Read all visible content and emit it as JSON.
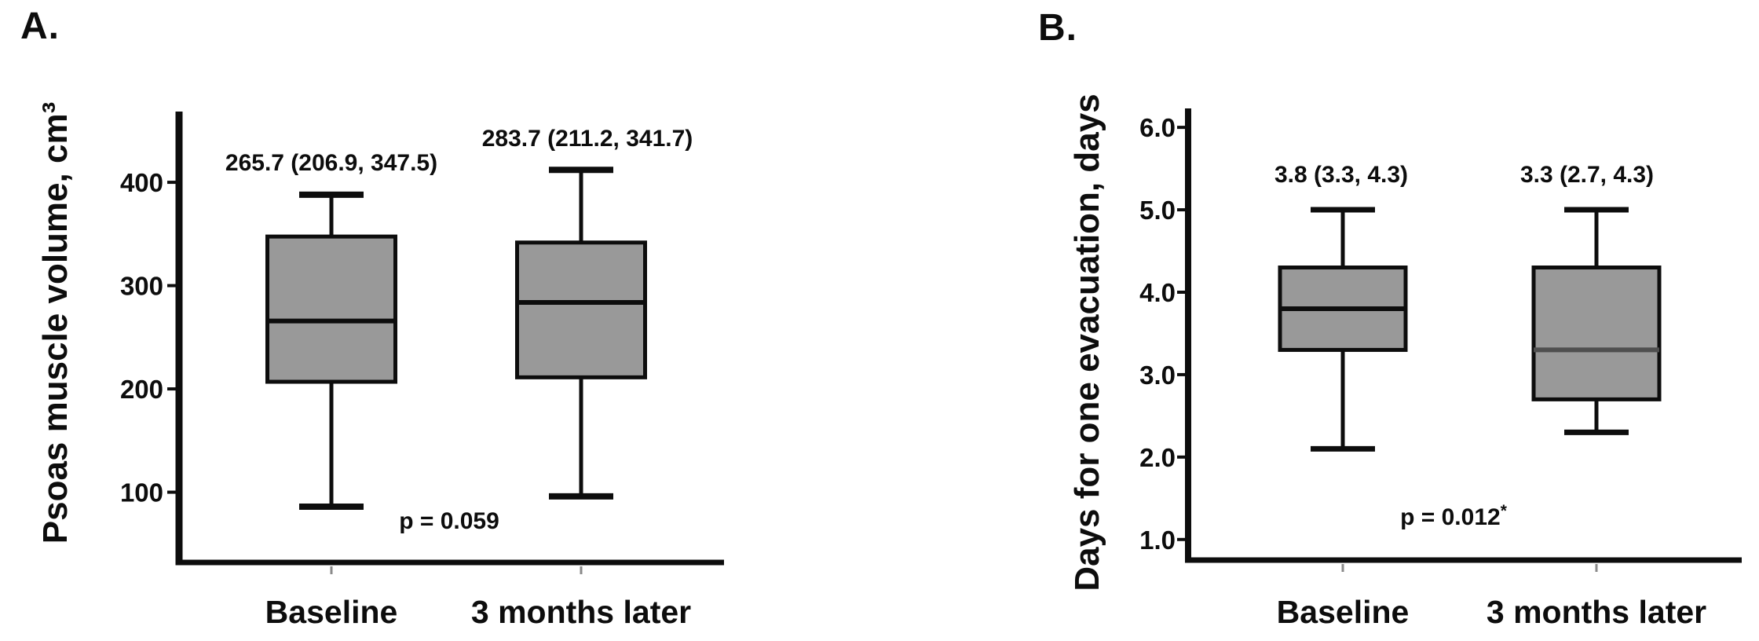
{
  "figure": {
    "background_color": "#ffffff",
    "text_color": "#0d0d0d",
    "box_fill_color": "#999999",
    "box_stroke_color": "#0d0d0d",
    "muted_tick_color": "#8a8a8a",
    "secondary_median_color": "#4f4f4f"
  },
  "chart_data": [
    {
      "type": "box",
      "panel_label": "A.",
      "ylabel": "Psoas muscle volume, cm³",
      "categories": [
        "Baseline",
        "3 months later"
      ],
      "yticks": [
        100,
        200,
        300,
        400
      ],
      "ytick_labels": [
        "100",
        "200",
        "300",
        "400"
      ],
      "ylim": [
        32,
        468.5
      ],
      "grid": false,
      "series": [
        {
          "category": "Baseline",
          "median": 265.7,
          "q1": 206.9,
          "q3": 347.5,
          "whisker_low": 86,
          "whisker_high": 388,
          "annotation": "265.7 (206.9, 347.5)",
          "median_color": "#0d0d0d"
        },
        {
          "category": "3 months later",
          "median": 283.7,
          "q1": 211.2,
          "q3": 341.7,
          "whisker_low": 96,
          "whisker_high": 412,
          "annotation": "283.7 (211.2, 341.7)",
          "median_color": "#0d0d0d"
        }
      ],
      "p_text": "p = 0.059",
      "p_superscript": ""
    },
    {
      "type": "box",
      "panel_label": "B.",
      "ylabel": "Days for one evacuation, days",
      "categories": [
        "Baseline",
        "3 months later"
      ],
      "yticks": [
        1.0,
        2.0,
        3.0,
        4.0,
        5.0,
        6.0
      ],
      "ytick_labels": [
        "1.0",
        "2.0",
        "3.0",
        "4.0",
        "5.0",
        "6.0"
      ],
      "ylim": [
        0.75,
        6.23
      ],
      "grid": false,
      "series": [
        {
          "category": "Baseline",
          "median": 3.8,
          "q1": 3.3,
          "q3": 4.3,
          "whisker_low": 2.1,
          "whisker_high": 5.0,
          "annotation": "3.8 (3.3, 4.3)",
          "median_color": "#0d0d0d"
        },
        {
          "category": "3 months later",
          "median": 3.3,
          "q1": 2.7,
          "q3": 4.3,
          "whisker_low": 2.3,
          "whisker_high": 5.0,
          "annotation": "3.3 (2.7, 4.3)",
          "median_color": "#4f4f4f"
        }
      ],
      "p_text": "p = 0.012",
      "p_superscript": "*"
    }
  ]
}
